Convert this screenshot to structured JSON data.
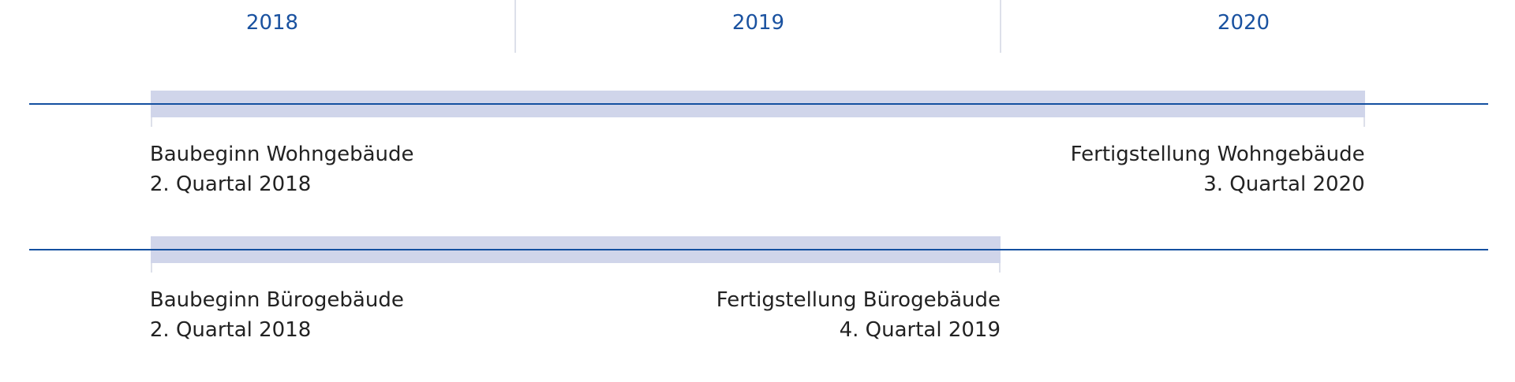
{
  "chart_data": {
    "type": "timeline",
    "years": [
      "2018",
      "2019",
      "2020"
    ],
    "colors": {
      "bar": "#d0d5ea",
      "axis": "#1450a0",
      "year": "#1a52a0"
    },
    "rows": [
      {
        "start": {
          "year": 2018,
          "quarter": 2
        },
        "end": {
          "year": 2020,
          "quarter": 3
        },
        "start_label": "Baubeginn Wohngebäude",
        "start_date": "2. Quartal 2018",
        "end_label": "Fertigstellung Wohngebäude",
        "end_date": "3. Quartal 2020"
      },
      {
        "start": {
          "year": 2018,
          "quarter": 2
        },
        "end": {
          "year": 2019,
          "quarter": 4
        },
        "start_label": "Baubeginn Bürogebäude",
        "start_date": "2. Quartal 2018",
        "end_label": "Fertigstellung Bürogebäude",
        "end_date": "4. Quartal 2019"
      }
    ]
  }
}
